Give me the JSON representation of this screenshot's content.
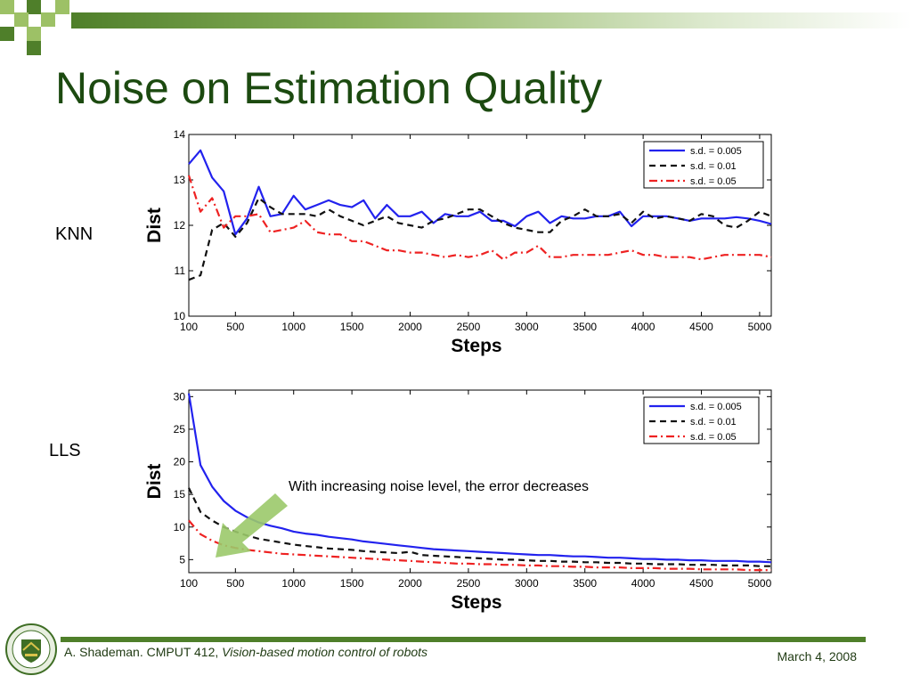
{
  "slide": {
    "title": "Noise on Estimation Quality",
    "labels": {
      "top": "KNN",
      "bottom": "LLS"
    },
    "annotation": "With increasing noise level, the error decreases",
    "footer": {
      "author": "A. Shademan. CMPUT 412,",
      "course_title": "Vision-based motion control of robots",
      "date": "March 4, 2008"
    },
    "colors": {
      "title": "#1c4a10",
      "band_dark": "#4f7f2a",
      "band_light": "#9dc166",
      "arrow": "#9bc96a"
    }
  },
  "chart_data": [
    {
      "type": "line",
      "xlabel": "Steps",
      "ylabel": "Dist",
      "xlim": [
        100,
        5100
      ],
      "ylim": [
        10,
        14
      ],
      "xticks": [
        100,
        500,
        1000,
        1500,
        2000,
        2500,
        3000,
        3500,
        4000,
        4500,
        5000
      ],
      "yticks": [
        10,
        11,
        12,
        13,
        14
      ],
      "grid": false,
      "legend": "top-right",
      "x": [
        100,
        200,
        300,
        400,
        500,
        600,
        700,
        800,
        900,
        1000,
        1100,
        1200,
        1300,
        1400,
        1500,
        1600,
        1700,
        1800,
        1900,
        2000,
        2100,
        2200,
        2300,
        2400,
        2500,
        2600,
        2700,
        2800,
        2900,
        3000,
        3100,
        3200,
        3300,
        3400,
        3500,
        3600,
        3700,
        3800,
        3900,
        4000,
        4100,
        4200,
        4300,
        4400,
        4500,
        4600,
        4700,
        4800,
        4900,
        5000,
        5100
      ],
      "series": [
        {
          "name": "s.d. = 0.005",
          "color": "#2222ee",
          "style": "solid",
          "values": [
            13.35,
            13.65,
            13.05,
            12.75,
            11.8,
            12.15,
            12.85,
            12.2,
            12.25,
            12.65,
            12.35,
            12.45,
            12.55,
            12.45,
            12.4,
            12.55,
            12.15,
            12.45,
            12.2,
            12.2,
            12.3,
            12.05,
            12.25,
            12.2,
            12.2,
            12.3,
            12.1,
            12.1,
            11.98,
            12.2,
            12.3,
            12.05,
            12.2,
            12.15,
            12.15,
            12.2,
            12.2,
            12.3,
            11.98,
            12.2,
            12.2,
            12.2,
            12.15,
            12.1,
            12.15,
            12.15,
            12.15,
            12.18,
            12.15,
            12.1,
            12.03
          ]
        },
        {
          "name": "s.d. = 0.01",
          "color": "#111111",
          "style": "dashed",
          "values": [
            10.8,
            10.9,
            11.9,
            12.05,
            11.75,
            12.05,
            12.6,
            12.4,
            12.25,
            12.25,
            12.25,
            12.2,
            12.35,
            12.2,
            12.1,
            12.0,
            12.1,
            12.2,
            12.05,
            12.0,
            11.95,
            12.1,
            12.15,
            12.25,
            12.35,
            12.35,
            12.2,
            12.05,
            11.95,
            11.9,
            11.85,
            11.85,
            12.1,
            12.2,
            12.35,
            12.2,
            12.2,
            12.25,
            12.05,
            12.3,
            12.15,
            12.2,
            12.15,
            12.1,
            12.25,
            12.2,
            12.0,
            11.95,
            12.1,
            12.3,
            12.2
          ]
        },
        {
          "name": "s.d. = 0.05",
          "color": "#ee2222",
          "style": "dashdot",
          "values": [
            13.1,
            12.3,
            12.6,
            11.95,
            12.2,
            12.2,
            12.25,
            11.85,
            11.9,
            11.95,
            12.1,
            11.85,
            11.8,
            11.8,
            11.65,
            11.65,
            11.55,
            11.45,
            11.45,
            11.4,
            11.4,
            11.35,
            11.3,
            11.35,
            11.3,
            11.35,
            11.45,
            11.25,
            11.4,
            11.4,
            11.55,
            11.3,
            11.3,
            11.35,
            11.35,
            11.35,
            11.35,
            11.4,
            11.45,
            11.35,
            11.35,
            11.3,
            11.3,
            11.3,
            11.25,
            11.3,
            11.35,
            11.35,
            11.35,
            11.35,
            11.3
          ]
        }
      ]
    },
    {
      "type": "line",
      "xlabel": "Steps",
      "ylabel": "Dist",
      "xlim": [
        100,
        5100
      ],
      "ylim": [
        3,
        31
      ],
      "xticks": [
        100,
        500,
        1000,
        1500,
        2000,
        2500,
        3000,
        3500,
        4000,
        4500,
        5000
      ],
      "yticks": [
        5,
        10,
        15,
        20,
        25,
        30
      ],
      "grid": false,
      "legend": "top-right",
      "x": [
        100,
        200,
        300,
        400,
        500,
        600,
        700,
        800,
        900,
        1000,
        1100,
        1200,
        1300,
        1400,
        1500,
        1600,
        1700,
        1800,
        1900,
        2000,
        2100,
        2200,
        2300,
        2400,
        2500,
        2600,
        2700,
        2800,
        2900,
        3000,
        3100,
        3200,
        3300,
        3400,
        3500,
        3600,
        3700,
        3800,
        3900,
        4000,
        4100,
        4200,
        4300,
        4400,
        4500,
        4600,
        4700,
        4800,
        4900,
        5000,
        5100
      ],
      "series": [
        {
          "name": "s.d. = 0.005",
          "color": "#2222ee",
          "style": "solid",
          "values": [
            30.5,
            19.5,
            16.2,
            14.0,
            12.5,
            11.5,
            10.7,
            10.2,
            9.8,
            9.3,
            9.0,
            8.8,
            8.5,
            8.3,
            8.1,
            7.8,
            7.6,
            7.4,
            7.2,
            7.0,
            6.8,
            6.6,
            6.5,
            6.4,
            6.3,
            6.2,
            6.1,
            6.0,
            5.9,
            5.8,
            5.7,
            5.7,
            5.6,
            5.5,
            5.5,
            5.4,
            5.3,
            5.3,
            5.2,
            5.1,
            5.1,
            5.0,
            5.0,
            4.9,
            4.9,
            4.8,
            4.8,
            4.8,
            4.7,
            4.7,
            4.6
          ]
        },
        {
          "name": "s.d. = 0.01",
          "color": "#111111",
          "style": "dashed",
          "values": [
            16,
            12.3,
            11.0,
            10.0,
            9.3,
            8.7,
            8.2,
            7.9,
            7.6,
            7.3,
            7.1,
            6.9,
            6.7,
            6.6,
            6.5,
            6.3,
            6.2,
            6.1,
            6.0,
            6.2,
            5.7,
            5.6,
            5.5,
            5.4,
            5.3,
            5.2,
            5.1,
            5.0,
            5.0,
            4.9,
            4.8,
            4.8,
            4.7,
            4.7,
            4.6,
            4.6,
            4.5,
            4.5,
            4.4,
            4.4,
            4.3,
            4.3,
            4.3,
            4.2,
            4.2,
            4.2,
            4.1,
            4.1,
            4.1,
            4.0,
            4.0
          ]
        },
        {
          "name": "s.d. = 0.05",
          "color": "#ee2222",
          "style": "dashdot",
          "values": [
            11.0,
            8.9,
            7.9,
            7.2,
            6.8,
            6.5,
            6.3,
            6.1,
            5.9,
            5.8,
            5.7,
            5.6,
            5.5,
            5.4,
            5.3,
            5.2,
            5.1,
            5.0,
            4.9,
            4.8,
            4.7,
            4.6,
            4.5,
            4.4,
            4.4,
            4.3,
            4.3,
            4.2,
            4.2,
            4.1,
            4.1,
            4.0,
            4.0,
            3.9,
            3.9,
            3.8,
            3.8,
            3.8,
            3.7,
            3.7,
            3.7,
            3.6,
            3.6,
            3.6,
            3.5,
            3.5,
            3.5,
            3.5,
            3.4,
            3.4,
            3.4
          ]
        }
      ]
    }
  ]
}
